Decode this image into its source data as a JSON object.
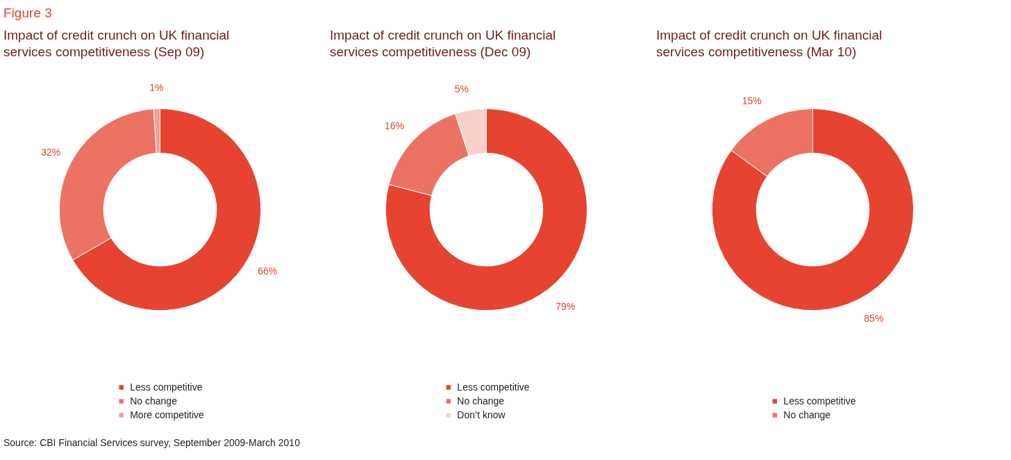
{
  "chart_data": [
    {
      "type": "donut",
      "title": "Impact of credit crunch on UK financial services competitiveness (Sep 09)",
      "categories": [
        "Less competitive",
        "No change",
        "More competitive"
      ],
      "values": [
        66,
        32,
        1
      ],
      "colors": [
        "#e64431",
        "#ec7363",
        "#f2a195"
      ],
      "value_labels": [
        "66%",
        "32%",
        "1%"
      ],
      "legend": "bottom",
      "annotations": [
        "Figure 3",
        "Source: CBI Financial Services survey, September 2009-March 2010"
      ]
    },
    {
      "type": "donut",
      "title": "Impact of credit crunch on UK financial services competitiveness (Dec 09)",
      "categories": [
        "Less competitive",
        "No change",
        "Don’t know"
      ],
      "values": [
        79,
        16,
        5
      ],
      "colors": [
        "#e64431",
        "#ec7363",
        "#f8cfc9"
      ],
      "value_labels": [
        "79%",
        "16%",
        "5%"
      ],
      "legend": "bottom"
    },
    {
      "type": "donut",
      "title": "Impact of credit crunch on UK financial services competitiveness (Mar 10)",
      "categories": [
        "Less competitive",
        "No change"
      ],
      "values": [
        85,
        15
      ],
      "colors": [
        "#e64431",
        "#ec7363"
      ],
      "value_labels": [
        "85%",
        "15%"
      ],
      "legend": "bottom"
    }
  ]
}
